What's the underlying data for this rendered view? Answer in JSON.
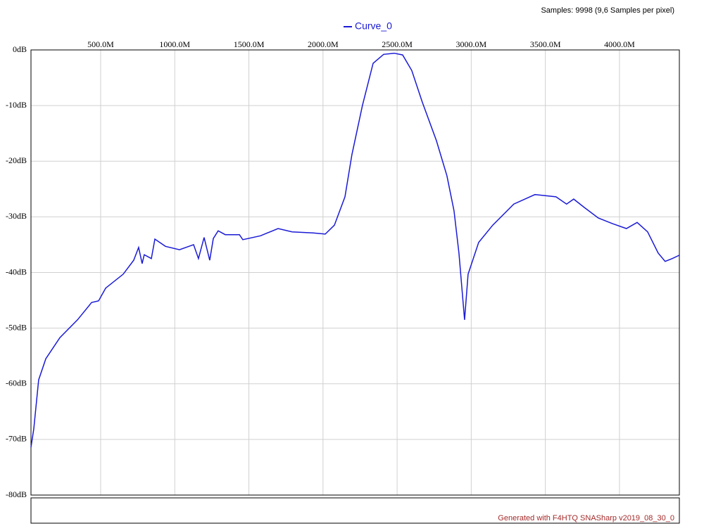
{
  "samples_info": "Samples: 9998 (9,6 Samples per pixel)",
  "footer": "Generated with F4HTQ SNASharp v2019_08_30_0",
  "chart_data": {
    "type": "line",
    "grid": true,
    "legend": "top",
    "xlim": [
      30,
      4404
    ],
    "ylim": [
      -80,
      0
    ],
    "xticks": [
      {
        "value": 500,
        "label": "500.0M"
      },
      {
        "value": 1000,
        "label": "1000.0M"
      },
      {
        "value": 1500,
        "label": "1500.0M"
      },
      {
        "value": 2000,
        "label": "2000.0M"
      },
      {
        "value": 2500,
        "label": "2500.0M"
      },
      {
        "value": 3000,
        "label": "3000.0M"
      },
      {
        "value": 3500,
        "label": "3500.0M"
      },
      {
        "value": 4000,
        "label": "4000.0M"
      }
    ],
    "yticks": [
      {
        "value": 0,
        "label": "0dB"
      },
      {
        "value": -10,
        "label": "-10dB"
      },
      {
        "value": -20,
        "label": "-20dB"
      },
      {
        "value": -30,
        "label": "-30dB"
      },
      {
        "value": -40,
        "label": "-40dB"
      },
      {
        "value": -50,
        "label": "-50dB"
      },
      {
        "value": -60,
        "label": "-60dB"
      },
      {
        "value": -70,
        "label": "-70dB"
      },
      {
        "value": -80,
        "label": "-80dB"
      }
    ],
    "x": [
      30,
      49,
      82,
      130,
      225,
      344,
      439,
      486,
      534,
      652,
      723,
      756,
      780,
      794,
      842,
      866,
      937,
      1032,
      1127,
      1160,
      1198,
      1236,
      1260,
      1293,
      1341,
      1436,
      1459,
      1578,
      1697,
      1792,
      1934,
      2015,
      2077,
      2148,
      2195,
      2266,
      2338,
      2409,
      2480,
      2537,
      2599,
      2670,
      2765,
      2836,
      2884,
      2917,
      2955,
      2979,
      3050,
      3145,
      3287,
      3430,
      3572,
      3643,
      3691,
      3762,
      3857,
      3952,
      4047,
      4119,
      4190,
      4261,
      4308,
      4356,
      4403
    ],
    "series": [
      {
        "name": "Curve_0",
        "color": "#1a1ad6",
        "values": [
          -71.4,
          -68.1,
          -59.3,
          -55.5,
          -51.7,
          -48.5,
          -45.4,
          -45.1,
          -42.8,
          -40.3,
          -37.8,
          -35.5,
          -38.4,
          -36.8,
          -37.5,
          -34.0,
          -35.3,
          -35.9,
          -35.0,
          -37.5,
          -33.7,
          -37.8,
          -33.9,
          -32.5,
          -33.2,
          -33.2,
          -34.1,
          -33.4,
          -32.1,
          -32.7,
          -32.9,
          -33.1,
          -31.5,
          -26.4,
          -18.8,
          -10.0,
          -2.4,
          -0.8,
          -0.6,
          -0.9,
          -3.7,
          -9.4,
          -16.3,
          -22.6,
          -28.9,
          -36.5,
          -48.5,
          -40.3,
          -34.6,
          -31.5,
          -27.7,
          -26.0,
          -26.4,
          -27.7,
          -26.8,
          -28.3,
          -30.2,
          -31.2,
          -32.1,
          -31.0,
          -32.7,
          -36.5,
          -38.0,
          -37.5,
          -36.9
        ]
      }
    ]
  }
}
